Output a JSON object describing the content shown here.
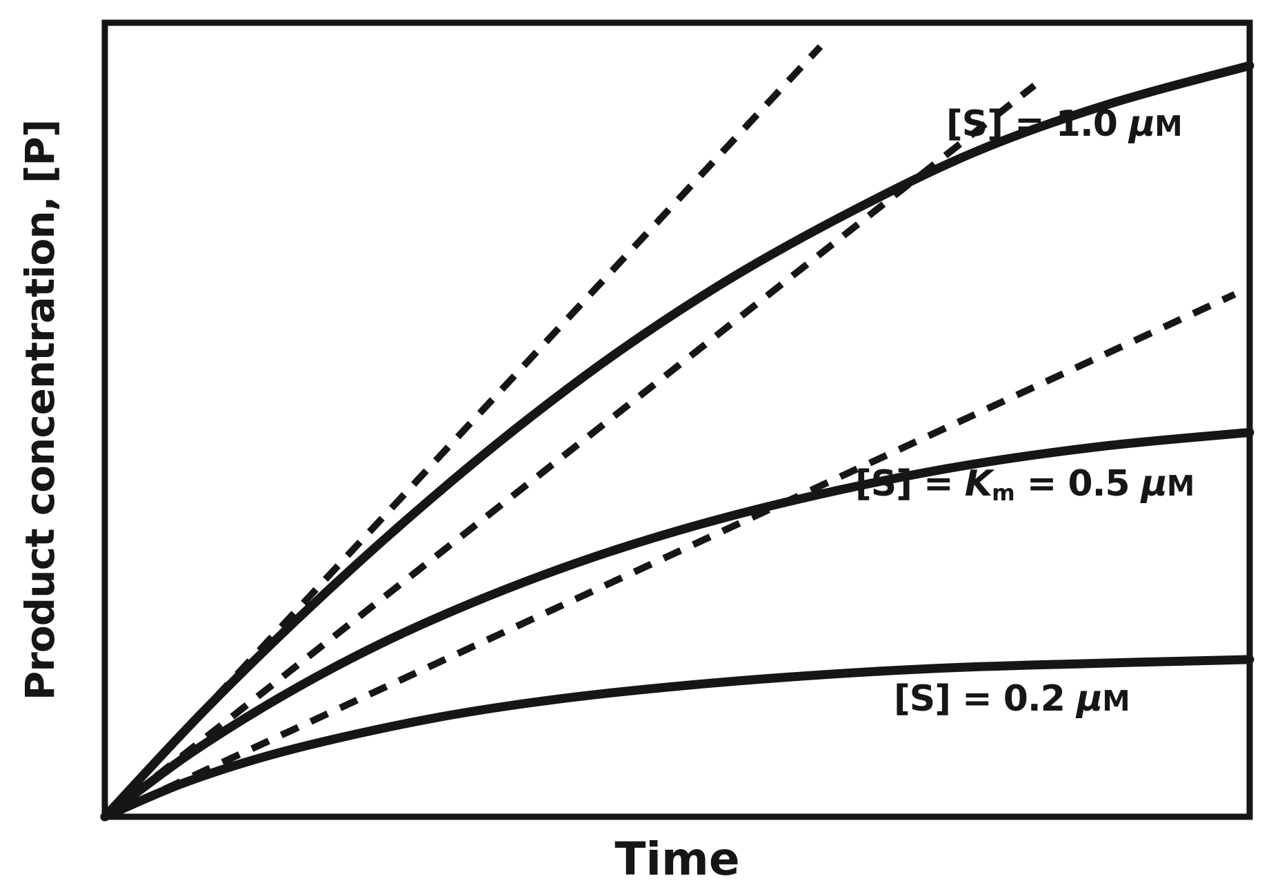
{
  "figure": {
    "background": "#ffffff",
    "line_color": "#161616"
  },
  "labels": {
    "y_axis": "Product concentration, [P]",
    "x_axis": "Time",
    "s10": {
      "pre": "[S] = 1.0 ",
      "mu": "μ",
      "unit": "M"
    },
    "s05": {
      "pre": "[S] = ",
      "k": "K",
      "ksub": "m",
      "mid": " = 0.5 ",
      "mu": "μ",
      "unit": "M"
    },
    "s02": {
      "pre": "[S] = 0.2 ",
      "mu": "μ",
      "unit": "M"
    }
  },
  "chart_data": {
    "type": "line",
    "title": "",
    "xlabel": "Time",
    "ylabel": "Product concentration, [P]",
    "x_ticks": [],
    "y_ticks": [],
    "axes_numeric_scale_shown": false,
    "grid": false,
    "legend_position": "inline-annotations",
    "note": "Enzyme progress curves [P] vs time for three substrate concentrations; dashed lines are initial-velocity tangents at t=0. Coordinates normalized 0-1 within the plot box (x = fraction of time axis, y = fraction of [P] axis).",
    "initial_velocity_slope_ratio": [
      1.0,
      0.73,
      0.43
    ],
    "series": [
      {
        "id": "curve-s-1.0",
        "name": "[S] = 1.0 μM",
        "style": "solid",
        "points": [
          [
            0,
            0
          ],
          [
            0.085,
            0.131
          ],
          [
            0.172,
            0.254
          ],
          [
            0.262,
            0.372
          ],
          [
            0.354,
            0.483
          ],
          [
            0.449,
            0.586
          ],
          [
            0.549,
            0.68
          ],
          [
            0.653,
            0.763
          ],
          [
            0.763,
            0.839
          ],
          [
            0.878,
            0.898
          ],
          [
            1.0,
            0.946
          ]
        ]
      },
      {
        "id": "curve-s-0.5",
        "name": "[S] = Km = 0.5 μM",
        "style": "solid",
        "points": [
          [
            0,
            0
          ],
          [
            0.075,
            0.08
          ],
          [
            0.155,
            0.152
          ],
          [
            0.241,
            0.218
          ],
          [
            0.332,
            0.276
          ],
          [
            0.429,
            0.328
          ],
          [
            0.532,
            0.373
          ],
          [
            0.64,
            0.411
          ],
          [
            0.754,
            0.443
          ],
          [
            0.874,
            0.467
          ],
          [
            1.0,
            0.484
          ]
        ]
      },
      {
        "id": "curve-s-0.2",
        "name": "[S] = 0.2 μM",
        "style": "solid",
        "points": [
          [
            0,
            0
          ],
          [
            0.066,
            0.041
          ],
          [
            0.138,
            0.075
          ],
          [
            0.216,
            0.103
          ],
          [
            0.302,
            0.128
          ],
          [
            0.395,
            0.148
          ],
          [
            0.497,
            0.164
          ],
          [
            0.608,
            0.177
          ],
          [
            0.728,
            0.187
          ],
          [
            0.859,
            0.193
          ],
          [
            1.0,
            0.198
          ]
        ]
      },
      {
        "id": "tangent-s-1.0",
        "name": "initial velocity tangent, [S] = 1.0 μM",
        "style": "dashed",
        "points": [
          [
            0,
            0
          ],
          [
            0.625,
            0.97
          ]
        ]
      },
      {
        "id": "tangent-s-0.5",
        "name": "initial velocity tangent, [S] = 0.5 μM",
        "style": "dashed",
        "points": [
          [
            0,
            0
          ],
          [
            0.812,
            0.921
          ]
        ]
      },
      {
        "id": "tangent-s-0.2",
        "name": "initial velocity tangent, [S] = 0.2 μM",
        "style": "dashed",
        "points": [
          [
            0,
            0
          ],
          [
            0.987,
            0.658
          ]
        ]
      }
    ],
    "annotations": [
      {
        "text": "[S] = 1.0 μM",
        "attached_to": "curve-s-1.0"
      },
      {
        "text": "[S] = Km = 0.5 μM",
        "attached_to": "curve-s-0.5"
      },
      {
        "text": "[S] = 0.2 μM",
        "attached_to": "curve-s-0.2"
      }
    ]
  }
}
